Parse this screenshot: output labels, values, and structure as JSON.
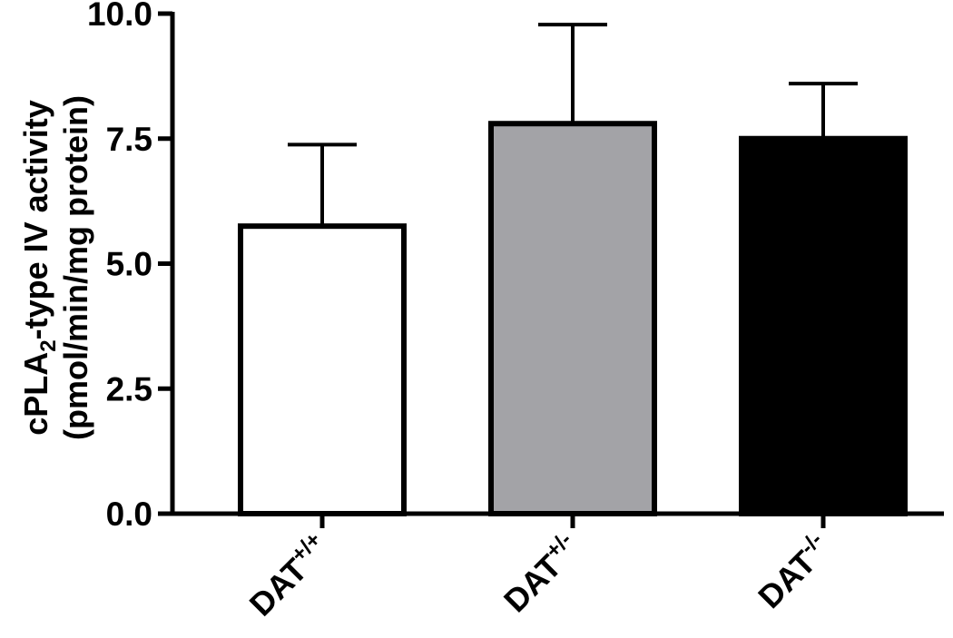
{
  "chart_data": {
    "type": "bar",
    "categories": [
      {
        "base": "DAT",
        "sup": "+/+"
      },
      {
        "base": "DAT",
        "sup": "+/-"
      },
      {
        "base": "DAT",
        "sup": "-/-"
      }
    ],
    "values": [
      5.75,
      7.8,
      7.5
    ],
    "error_upper": [
      7.38,
      9.78,
      8.6
    ],
    "fill_colors": [
      "#ffffff",
      "#a3a3a7",
      "#000000"
    ],
    "ylabel_line1": {
      "pre": "cPLA",
      "sub": "2",
      "post": "-type IV activity"
    },
    "ylabel_line2": "(pmol/min/mg protein)",
    "ylim": [
      0,
      10
    ],
    "yticks": [
      "0.0",
      "2.5",
      "5.0",
      "7.5",
      "10.0"
    ],
    "ytick_values": [
      0,
      2.5,
      5,
      7.5,
      10
    ],
    "grid": false,
    "legend": "none"
  }
}
